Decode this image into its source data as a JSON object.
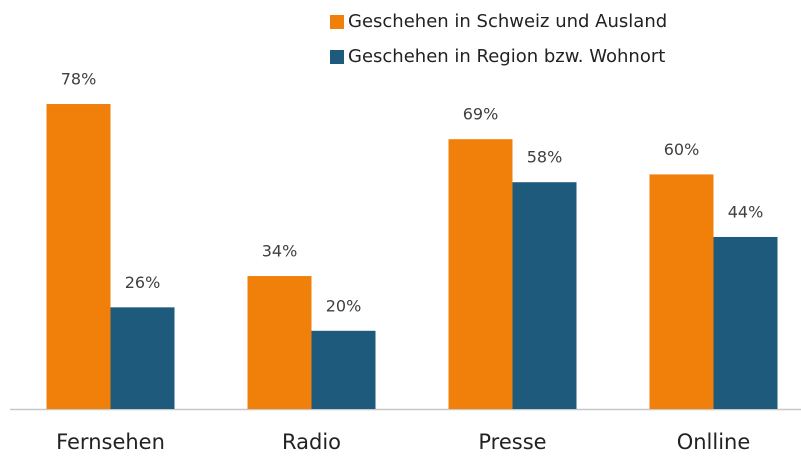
{
  "chart_data": {
    "type": "bar",
    "categories": [
      "Fernsehen",
      "Radio",
      "Presse",
      "Onlline"
    ],
    "series": [
      {
        "name": "Geschehen in Schweiz und Ausland",
        "color": "#f0800a",
        "values": [
          78,
          34,
          69,
          60
        ],
        "value_labels": [
          "78%",
          "34%",
          "69%",
          "60%"
        ]
      },
      {
        "name": "Geschehen in Region bzw. Wohnort",
        "color": "#1e5a7b",
        "values": [
          26,
          20,
          58,
          44
        ],
        "value_labels": [
          "26%",
          "20%",
          "58%",
          "44%"
        ]
      }
    ],
    "ylim": [
      0,
      100
    ],
    "legend": "top-right"
  }
}
